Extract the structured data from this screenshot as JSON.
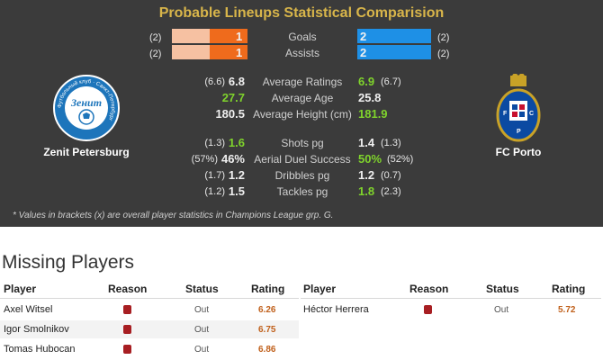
{
  "title": "Probable Lineups Statistical Comparision",
  "home_team": "Zenit Petersburg",
  "away_team": "FC Porto",
  "colors": {
    "home_bar_light": "#f6c1a2",
    "home_bar": "#ef6b1c",
    "away_bar": "#1e90e6",
    "green": "#7fd32c",
    "title": "#d8b54a"
  },
  "bars": [
    {
      "label": "Goals",
      "home": "1",
      "home_br": "(2)",
      "away": "2",
      "away_br": "(2)"
    },
    {
      "label": "Assists",
      "home": "1",
      "home_br": "(2)",
      "away": "2",
      "away_br": "(2)"
    }
  ],
  "stats1": [
    {
      "label": "Average Ratings",
      "home_br": "(6.6)",
      "home": "6.8",
      "away": "6.9",
      "away_br": "(6.7)"
    },
    {
      "label": "Average Age",
      "home_br": "",
      "home": "27.7",
      "away": "25.8",
      "away_br": ""
    },
    {
      "label": "Average Height (cm)",
      "home_br": "",
      "home": "180.5",
      "away": "181.9",
      "away_br": ""
    }
  ],
  "stats2": [
    {
      "label": "Shots pg",
      "home_br": "(1.3)",
      "home": "1.6",
      "away": "1.4",
      "away_br": "(1.3)"
    },
    {
      "label": "Aerial Duel Success",
      "home_br": "(57%)",
      "home": "46%",
      "away": "50%",
      "away_br": "(52%)"
    },
    {
      "label": "Dribbles pg",
      "home_br": "(1.7)",
      "home": "1.2",
      "away": "1.2",
      "away_br": "(0.7)"
    },
    {
      "label": "Tackles pg",
      "home_br": "(1.2)",
      "home": "1.5",
      "away": "1.8",
      "away_br": "(2.3)"
    }
  ],
  "note": "* Values in brackets (x) are overall player statistics in Champions League grp. G.",
  "missing_title": "Missing Players",
  "columns": [
    "Player",
    "Reason",
    "Status",
    "Rating"
  ],
  "home_missing": [
    {
      "player": "Axel Witsel",
      "status": "Out",
      "rating": "6.26"
    },
    {
      "player": "Igor Smolnikov",
      "status": "Out",
      "rating": "6.75"
    },
    {
      "player": "Tomas Hubocan",
      "status": "Out",
      "rating": "6.86"
    }
  ],
  "away_missing": [
    {
      "player": "Héctor Herrera",
      "status": "Out",
      "rating": "5.72"
    }
  ],
  "home_logo": {
    "text": "Зенит",
    "ring": "Футбольный клуб · Санкт-Петербург"
  }
}
